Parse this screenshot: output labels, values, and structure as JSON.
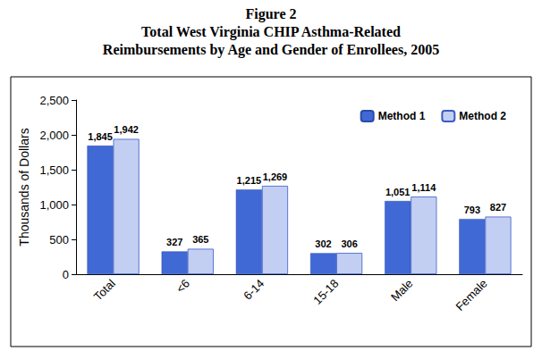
{
  "chart_data": {
    "type": "bar",
    "title": "Figure 2",
    "subtitle": "Total West Virginia CHIP Asthma-Related\nReimbursements by Age and Gender of Enrollees, 2005",
    "y_label": "Thousands of Dollars",
    "categories": [
      "Total",
      "<6",
      "6-14",
      "15-18",
      "Male",
      "Female"
    ],
    "series": [
      {
        "name": "Method 1",
        "color": "#4169d6",
        "values": [
          1845,
          327,
          1215,
          302,
          1051,
          793
        ],
        "value_labels": [
          "1,845",
          "327",
          "1,215",
          "302",
          "1,051",
          "793"
        ]
      },
      {
        "name": "Method 2",
        "color": "#c3cff2",
        "values": [
          1942,
          365,
          1269,
          306,
          1114,
          827
        ],
        "value_labels": [
          "1,942",
          "365",
          "1,269",
          "306",
          "1,114",
          "827"
        ]
      }
    ],
    "ylim": [
      0,
      2500
    ],
    "yticks": [
      0,
      500,
      1000,
      1500,
      2000,
      2500
    ],
    "grid": false,
    "legend": "upper right",
    "data_labels": true
  }
}
